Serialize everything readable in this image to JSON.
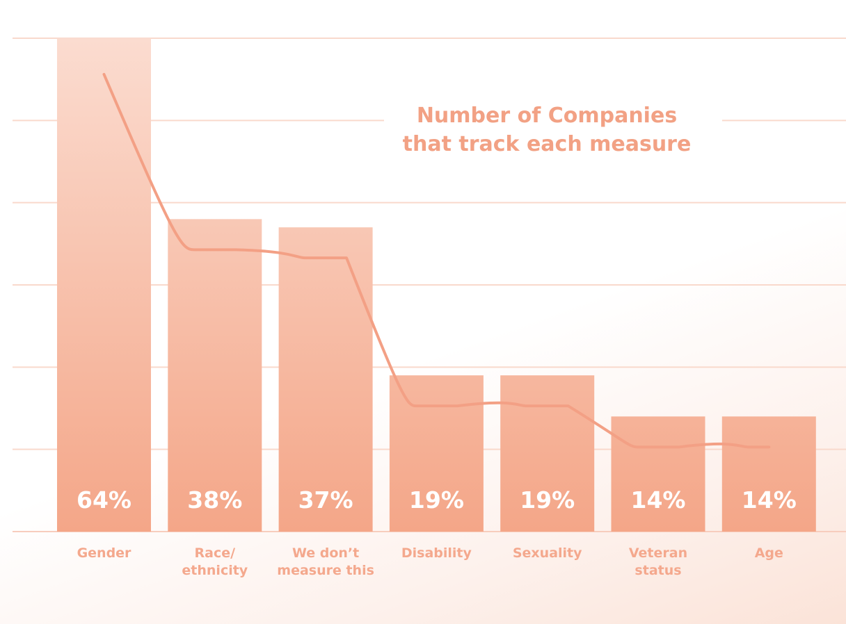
{
  "chart_data": {
    "type": "bar",
    "title_lines": [
      "Number of Companies",
      "that track each measure"
    ],
    "categories": [
      "Gender",
      "Race/ ethnicity",
      "We don’t measure this",
      "Disability",
      "Sexuality",
      "Veteran status",
      "Age"
    ],
    "category_lines": [
      [
        "Gender"
      ],
      [
        "Race/",
        "ethnicity"
      ],
      [
        "We don’t",
        "measure this"
      ],
      [
        "Disability"
      ],
      [
        "Sexuality"
      ],
      [
        "Veteran",
        "status"
      ],
      [
        "Age"
      ]
    ],
    "values": [
      64,
      38,
      37,
      19,
      19,
      14,
      14
    ],
    "value_labels": [
      "64%",
      "38%",
      "37%",
      "19%",
      "19%",
      "14%",
      "14%"
    ],
    "ylim": [
      0,
      60
    ],
    "grid": true,
    "trend_line": true,
    "colors": {
      "bar_top": "#fbdcd0",
      "bar_bottom": "#f4a688",
      "line": "#f3a085",
      "text": "#f4a88d",
      "grid": "#f9d9cc"
    }
  }
}
